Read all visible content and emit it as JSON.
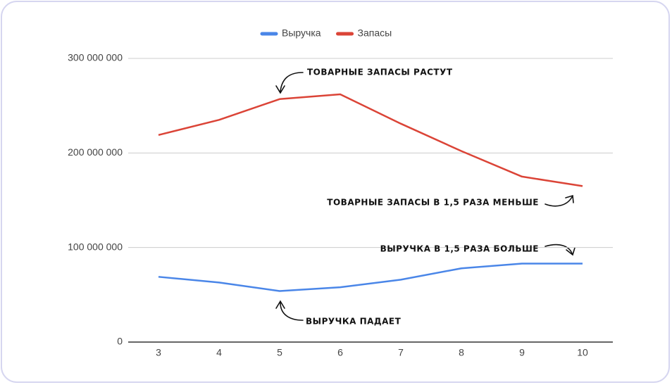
{
  "chart_data": {
    "type": "line",
    "categories": [
      "3",
      "4",
      "5",
      "6",
      "7",
      "8",
      "9",
      "10"
    ],
    "series": [
      {
        "name": "Выручка",
        "color": "#4a86e8",
        "values": [
          69000000,
          63000000,
          54000000,
          58000000,
          66000000,
          78000000,
          83000000,
          83000000
        ]
      },
      {
        "name": "Запасы",
        "color": "#db4437",
        "values": [
          219000000,
          235000000,
          257000000,
          262000000,
          231000000,
          202000000,
          175000000,
          165000000
        ]
      }
    ],
    "ylim": [
      0,
      300000000
    ],
    "yticks": [
      0,
      {
        "value": 100000000,
        "label": "100 000 000"
      },
      {
        "value": 200000000,
        "label": "200 000 000"
      },
      {
        "value": 300000000,
        "label": "300 000 000"
      }
    ],
    "grid": true,
    "legend": "top",
    "annotations": [
      "ТОВАРНЫЕ ЗАПАСЫ РАСТУТ",
      "ТОВАРНЫЕ ЗАПАСЫ В 1,5 РАЗА МЕНЬШЕ",
      "ВЫРУЧКА В 1,5 РАЗА БОЛЬШЕ",
      "ВЫРУЧКА ПАДАЕТ"
    ]
  }
}
